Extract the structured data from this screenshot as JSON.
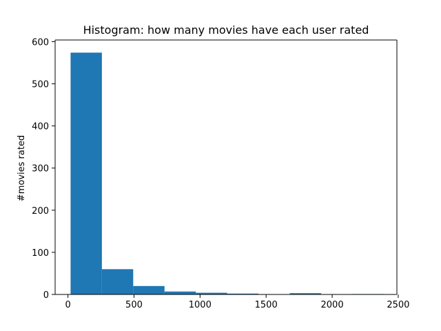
{
  "chart_data": {
    "type": "bar",
    "subtype": "histogram",
    "title": "Histogram: how many movies have each user rated",
    "xlabel": "",
    "ylabel": "#movies rated",
    "xlim": [
      -97,
      2490
    ],
    "ylim": [
      0,
      604
    ],
    "xticks": [
      0,
      500,
      1000,
      1500,
      2000,
      2500
    ],
    "yticks": [
      0,
      100,
      200,
      300,
      400,
      500,
      600
    ],
    "grid": false,
    "legend": null,
    "bar_color": "#1f77b4",
    "bins": [
      {
        "start": 20,
        "end": 257,
        "count": 574
      },
      {
        "start": 257,
        "end": 494,
        "count": 60
      },
      {
        "start": 494,
        "end": 731,
        "count": 20
      },
      {
        "start": 731,
        "end": 968,
        "count": 7
      },
      {
        "start": 968,
        "end": 1205,
        "count": 4
      },
      {
        "start": 1205,
        "end": 1442,
        "count": 2
      },
      {
        "start": 1442,
        "end": 1679,
        "count": 0
      },
      {
        "start": 1679,
        "end": 1916,
        "count": 3
      },
      {
        "start": 1916,
        "end": 2153,
        "count": 0
      },
      {
        "start": 2153,
        "end": 2390,
        "count": 1
      }
    ]
  }
}
